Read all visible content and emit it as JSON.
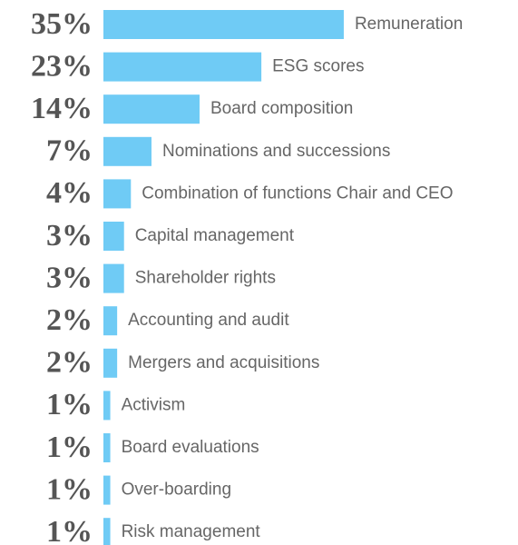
{
  "chart_data": {
    "type": "bar",
    "orientation": "horizontal",
    "categories": [
      "Remuneration",
      "ESG scores",
      "Board composition",
      "Nominations and successions",
      "Combination of functions Chair and CEO",
      "Capital management",
      "Shareholder rights",
      "Accounting and audit",
      "Mergers and acquisitions",
      "Activism",
      "Board evaluations",
      "Over-boarding",
      "Risk management"
    ],
    "values": [
      35,
      23,
      14,
      7,
      4,
      3,
      3,
      2,
      2,
      1,
      1,
      1,
      1
    ],
    "value_labels": [
      "35%",
      "23%",
      "14%",
      "7%",
      "4%",
      "3%",
      "3%",
      "2%",
      "2%",
      "1%",
      "1%",
      "1%",
      "1%"
    ],
    "color": "#6fcbf5"
  }
}
